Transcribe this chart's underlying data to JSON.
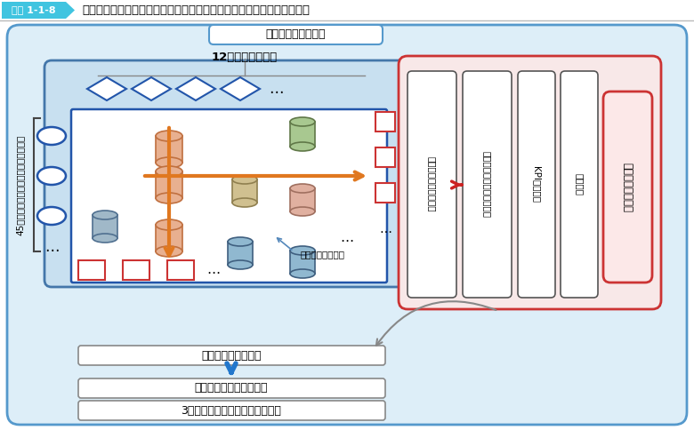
{
  "title_label": "図表 1-1-8",
  "title_text": "脆弱性評価の結果と国土強靱化基本計画及びアクションプランとの関係",
  "header_bg": "#40c4e0",
  "bg_color": "#ffffff",
  "outer_fill": "#ddeef8",
  "outer_edge": "#5599cc",
  "inner_fill": "#c8e0f0",
  "inner_edge": "#4477aa",
  "white_box_fill": "#ffffff",
  "dark_box_edge": "#2255aa",
  "red_fill": "#fce8e8",
  "red_edge": "#cc3333",
  "orange": "#e07820",
  "blue_cyl": "#3366bb",
  "gray": "#888888",
  "blue_arrow": "#2277cc",
  "col1_label": "プログラムごとの評価",
  "col2_label": "プログラムごとの推進方針",
  "col3_label": "KPIの目標値",
  "col4_label": "主要施策",
  "action_label": "アクションプラン",
  "kokudo_label": "国土強靱化基本計画",
  "kojin_label": "12の個別施策分野",
  "left_label": "45の「起きてはならない最悪の事態」",
  "kankei_label": "関係府省庁の施策",
  "hyoka_label": "施策分野ごとの評価",
  "suisin1_label": "施策分野ごとの推進方針",
  "suisin2_label": "3つの横断的施策分野の推進方針"
}
